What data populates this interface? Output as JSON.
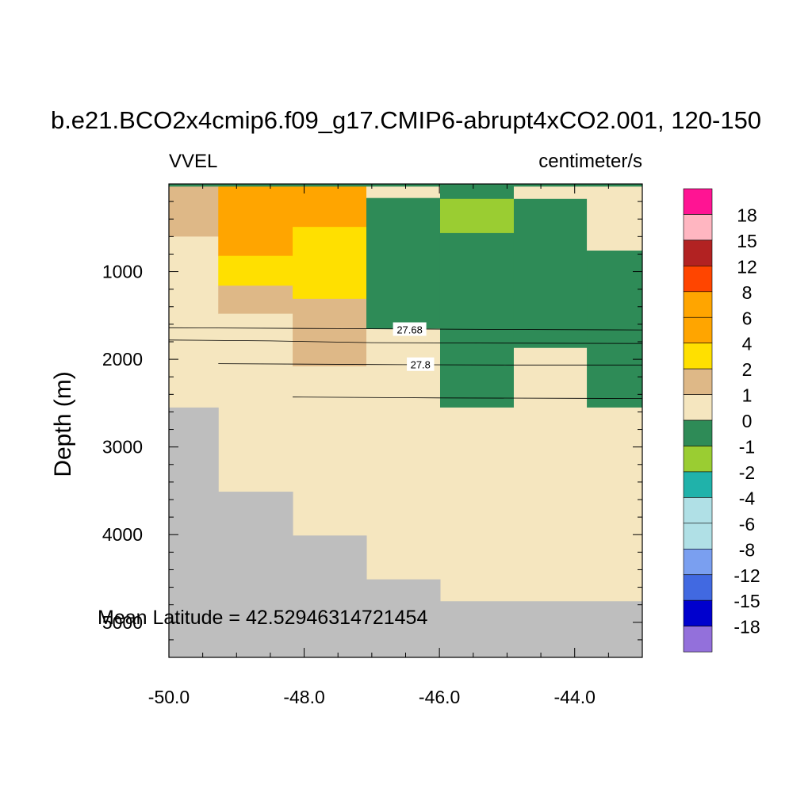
{
  "chart_data": {
    "type": "heatmap",
    "title": "b.e21.BCO2x4cmip6.f09_g17.CMIP6-abrupt4xCO2.001, 120-150",
    "left_label": "VVEL",
    "right_label": "centimeter/s",
    "xlabel": "",
    "ylabel": "Depth (m)",
    "xlim": [
      -50.0,
      -43.0
    ],
    "ylim": [
      0,
      5400
    ],
    "y_inverted": true,
    "x_ticks": [
      -50.0,
      -48.0,
      -46.0,
      -44.0
    ],
    "x_tick_labels": [
      "-50.0",
      "-48.0",
      "-46.0",
      "-44.0"
    ],
    "y_ticks": [
      1000,
      2000,
      3000,
      4000,
      5000
    ],
    "y_tick_labels": [
      "1000",
      "2000",
      "3000",
      "4000",
      "5000"
    ],
    "annotation": "Mean Latitude = 42.52946314721454",
    "colorbar": {
      "labels": [
        "18",
        "15",
        "12",
        "8",
        "6",
        "4",
        "2",
        "1",
        "0",
        "-1",
        "-2",
        "-4",
        "-6",
        "-8",
        "-12",
        "-15",
        "-18"
      ],
      "colors": [
        "#ff1493",
        "#ffb6c1",
        "#b22222",
        "#ff4500",
        "#ffa500",
        "#ffa500",
        "#ffe000",
        "#deb887",
        "#f5e6bf",
        "#2e8b57",
        "#9acd32",
        "#20b2aa",
        "#b0e0e6",
        "#b0e0e6",
        "#7a9ff0",
        "#4169e1",
        "#0000cd",
        "#9370db"
      ]
    },
    "land_color": "#bebebe",
    "columns_x": [
      -50.0,
      -49.27,
      -48.17,
      -47.08,
      -45.99,
      -44.9,
      -43.82,
      -43.0
    ],
    "cells": [
      {
        "x": [
          -50.0,
          -43.0
        ],
        "y": [
          0,
          30
        ],
        "color": "#2e8b57"
      },
      {
        "x": [
          -50.0,
          -49.27
        ],
        "y": [
          30,
          600
        ],
        "color": "#deb887"
      },
      {
        "x": [
          -50.0,
          -49.27
        ],
        "y": [
          600,
          2550
        ],
        "color": "#f5e6bf"
      },
      {
        "x": [
          -49.27,
          -48.17
        ],
        "y": [
          30,
          820
        ],
        "color": "#ffa500"
      },
      {
        "x": [
          -49.27,
          -48.17
        ],
        "y": [
          820,
          1160
        ],
        "color": "#ffe000"
      },
      {
        "x": [
          -49.27,
          -48.17
        ],
        "y": [
          1160,
          1480
        ],
        "color": "#deb887"
      },
      {
        "x": [
          -49.27,
          -48.17
        ],
        "y": [
          1480,
          3510
        ],
        "color": "#f5e6bf"
      },
      {
        "x": [
          -48.17,
          -47.08
        ],
        "y": [
          30,
          490
        ],
        "color": "#ffa500"
      },
      {
        "x": [
          -48.17,
          -47.08
        ],
        "y": [
          490,
          1310
        ],
        "color": "#ffe000"
      },
      {
        "x": [
          -48.17,
          -47.08
        ],
        "y": [
          1310,
          2080
        ],
        "color": "#deb887"
      },
      {
        "x": [
          -48.17,
          -47.08
        ],
        "y": [
          2080,
          4010
        ],
        "color": "#f5e6bf"
      },
      {
        "x": [
          -47.08,
          -45.99
        ],
        "y": [
          30,
          160
        ],
        "color": "#f5e6bf"
      },
      {
        "x": [
          -47.08,
          -45.99
        ],
        "y": [
          160,
          1650
        ],
        "color": "#2e8b57"
      },
      {
        "x": [
          -47.08,
          -45.99
        ],
        "y": [
          1650,
          4510
        ],
        "color": "#f5e6bf"
      },
      {
        "x": [
          -45.99,
          -44.9
        ],
        "y": [
          30,
          170
        ],
        "color": "#2e8b57"
      },
      {
        "x": [
          -45.99,
          -44.9
        ],
        "y": [
          170,
          560
        ],
        "color": "#9acd32"
      },
      {
        "x": [
          -45.99,
          -44.9
        ],
        "y": [
          560,
          2550
        ],
        "color": "#2e8b57"
      },
      {
        "x": [
          -45.99,
          -44.9
        ],
        "y": [
          2550,
          4760
        ],
        "color": "#f5e6bf"
      },
      {
        "x": [
          -44.9,
          -43.82
        ],
        "y": [
          30,
          170
        ],
        "color": "#f5e6bf"
      },
      {
        "x": [
          -44.9,
          -43.82
        ],
        "y": [
          170,
          1870
        ],
        "color": "#2e8b57"
      },
      {
        "x": [
          -44.9,
          -43.82
        ],
        "y": [
          1870,
          4760
        ],
        "color": "#f5e6bf"
      },
      {
        "x": [
          -43.82,
          -43.0
        ],
        "y": [
          30,
          760
        ],
        "color": "#f5e6bf"
      },
      {
        "x": [
          -43.82,
          -43.0
        ],
        "y": [
          760,
          2550
        ],
        "color": "#2e8b57"
      },
      {
        "x": [
          -43.82,
          -43.0
        ],
        "y": [
          2550,
          4760
        ],
        "color": "#f5e6bf"
      }
    ],
    "land": [
      {
        "x": [
          -50.0,
          -49.27
        ],
        "y": [
          2550,
          5400
        ]
      },
      {
        "x": [
          -49.27,
          -48.17
        ],
        "y": [
          3510,
          5400
        ]
      },
      {
        "x": [
          -48.17,
          -47.08
        ],
        "y": [
          4010,
          5400
        ]
      },
      {
        "x": [
          -47.08,
          -45.99
        ],
        "y": [
          4510,
          5400
        ]
      },
      {
        "x": [
          -45.99,
          -43.0
        ],
        "y": [
          4760,
          5400
        ]
      }
    ],
    "contours": [
      {
        "points": [
          [
            -50.0,
            1640
          ],
          [
            -47.5,
            1650
          ],
          [
            -45.0,
            1660
          ],
          [
            -43.0,
            1665
          ]
        ],
        "label": "27.68",
        "label_at": [
          -46.44,
          1660
        ]
      },
      {
        "points": [
          [
            -50.0,
            1780
          ],
          [
            -48.5,
            1790
          ],
          [
            -47.0,
            1810
          ],
          [
            -45.0,
            1815
          ],
          [
            -43.0,
            1820
          ]
        ],
        "label": "",
        "label_at": null
      },
      {
        "points": [
          [
            -49.27,
            2050
          ],
          [
            -47.0,
            2060
          ],
          [
            -45.0,
            2065
          ],
          [
            -43.0,
            2065
          ]
        ],
        "label": "27.8",
        "label_at": [
          -46.28,
          2060
        ]
      },
      {
        "points": [
          [
            -48.17,
            2430
          ],
          [
            -46.0,
            2440
          ],
          [
            -44.0,
            2445
          ],
          [
            -43.0,
            2448
          ]
        ],
        "label": "",
        "label_at": null
      }
    ]
  }
}
